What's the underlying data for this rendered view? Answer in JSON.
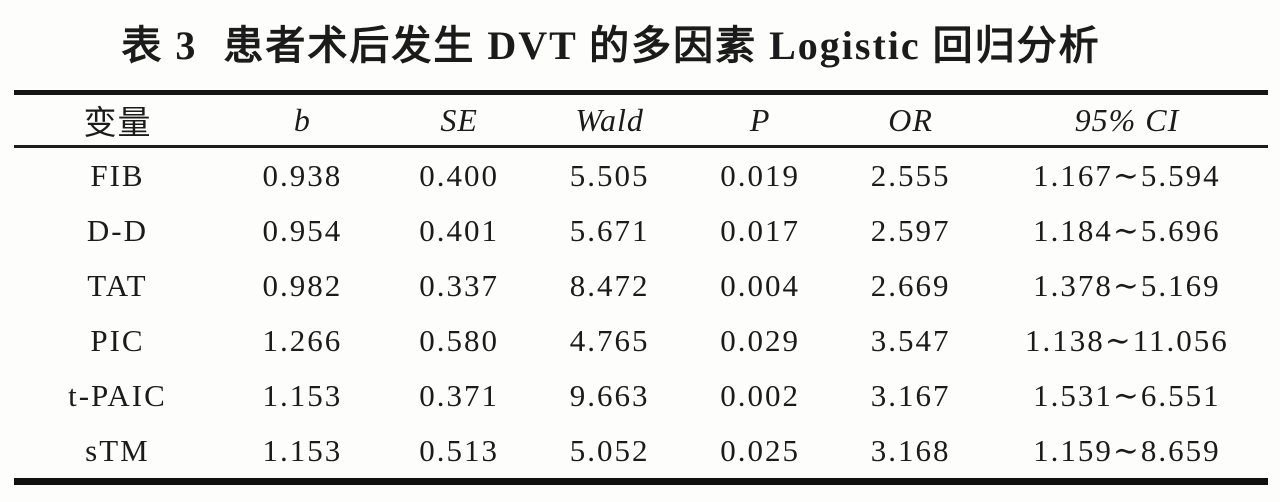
{
  "title": {
    "prefix": "表 3",
    "main": "患者术后发生 DVT 的多因素 Logistic 回归分析"
  },
  "table": {
    "columns": [
      "变量",
      "b",
      "SE",
      "Wald",
      "P",
      "OR",
      "95% CI"
    ],
    "rows": [
      {
        "variable": "FIB",
        "b": "0.938",
        "se": "0.400",
        "wald": "5.505",
        "p": "0.019",
        "or": "2.555",
        "ci": "1.167∼5.594"
      },
      {
        "variable": "D-D",
        "b": "0.954",
        "se": "0.401",
        "wald": "5.671",
        "p": "0.017",
        "or": "2.597",
        "ci": "1.184∼5.696"
      },
      {
        "variable": "TAT",
        "b": "0.982",
        "se": "0.337",
        "wald": "8.472",
        "p": "0.004",
        "or": "2.669",
        "ci": "1.378∼5.169"
      },
      {
        "variable": "PIC",
        "b": "1.266",
        "se": "0.580",
        "wald": "4.765",
        "p": "0.029",
        "or": "3.547",
        "ci": "1.138∼11.056"
      },
      {
        "variable": "t-PAIC",
        "b": "1.153",
        "se": "0.371",
        "wald": "9.663",
        "p": "0.002",
        "or": "3.167",
        "ci": "1.531∼6.551"
      },
      {
        "variable": "sTM",
        "b": "1.153",
        "se": "0.513",
        "wald": "5.052",
        "p": "0.025",
        "or": "3.168",
        "ci": "1.159∼8.659"
      }
    ]
  },
  "colors": {
    "background": "#fdfdfb",
    "text": "#1b1b1b",
    "rule": "#161616"
  }
}
